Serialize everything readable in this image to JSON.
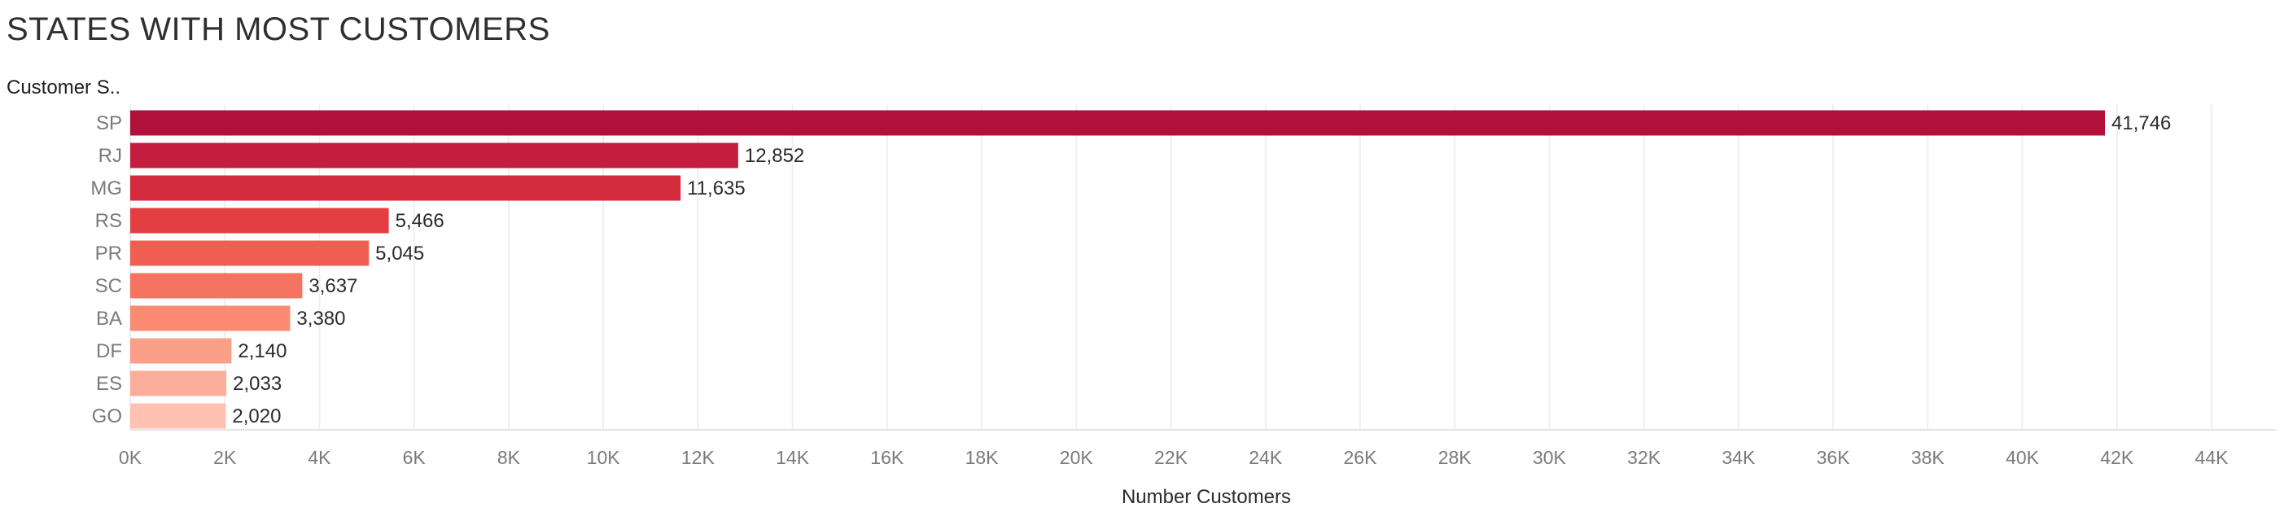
{
  "chart_data": {
    "type": "bar",
    "orientation": "horizontal",
    "title": "STATES WITH MOST CUSTOMERS",
    "row_header": "Customer S..",
    "xlabel": "Number Customers",
    "ylabel": "",
    "categories": [
      "SP",
      "RJ",
      "MG",
      "RS",
      "PR",
      "SC",
      "BA",
      "DF",
      "ES",
      "GO"
    ],
    "values": [
      41746,
      12852,
      11635,
      5466,
      5045,
      3637,
      3380,
      2140,
      2033,
      2020
    ],
    "value_labels": [
      "41,746",
      "12,852",
      "11,635",
      "5,466",
      "5,045",
      "3,637",
      "3,380",
      "2,140",
      "2,033",
      "2,020"
    ],
    "colors": [
      "#b0103a",
      "#c41e3f",
      "#d42b3c",
      "#e33f43",
      "#ef5e50",
      "#f57361",
      "#fa8a72",
      "#fc9f88",
      "#fdae9a",
      "#fec2b3"
    ],
    "xlim": [
      0,
      44000
    ],
    "xticks": [
      0,
      2000,
      4000,
      6000,
      8000,
      10000,
      12000,
      14000,
      16000,
      18000,
      20000,
      22000,
      24000,
      26000,
      28000,
      30000,
      32000,
      34000,
      36000,
      38000,
      40000,
      42000,
      44000
    ],
    "xtick_labels": [
      "0K",
      "2K",
      "4K",
      "6K",
      "8K",
      "10K",
      "12K",
      "14K",
      "16K",
      "18K",
      "20K",
      "22K",
      "24K",
      "26K",
      "28K",
      "30K",
      "32K",
      "34K",
      "36K",
      "38K",
      "40K",
      "42K",
      "44K"
    ],
    "grid": true,
    "legend": "none"
  }
}
